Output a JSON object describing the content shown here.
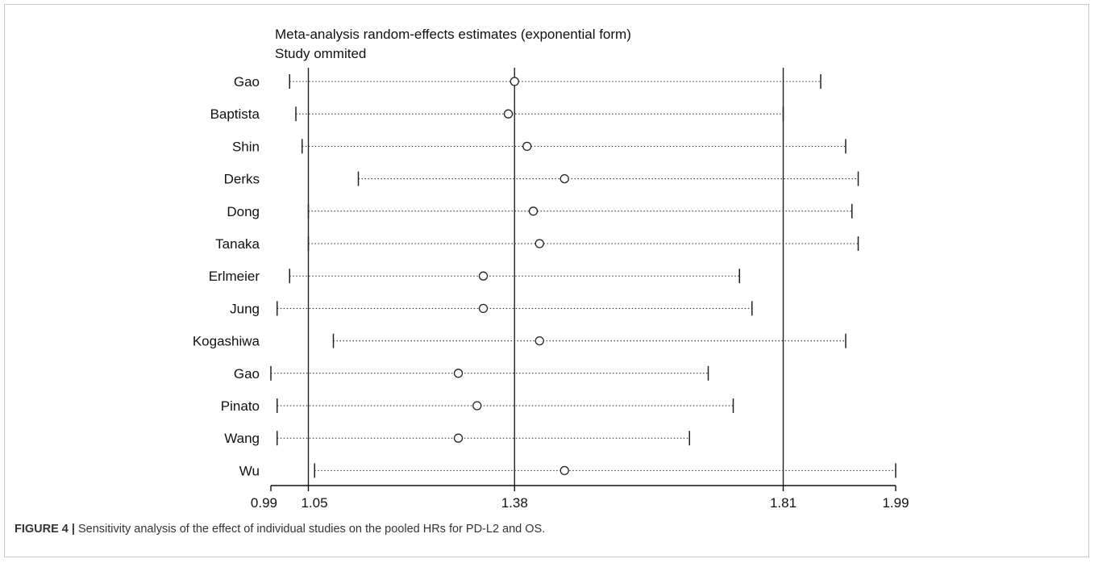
{
  "chart_data": {
    "type": "scatter",
    "title": "Meta-analysis random-effects estimates (exponential form)",
    "subtitle": "Study ommited",
    "xlabel": "",
    "ylabel": "",
    "xlim": [
      0.99,
      1.99
    ],
    "x_ticks": [
      "0.99",
      "1.05",
      "1.38",
      "1.81",
      "1.99"
    ],
    "reference_lines": [
      1.05,
      1.38,
      1.81
    ],
    "studies": [
      {
        "label": "Gao",
        "estimate": 1.38,
        "lower": 1.02,
        "upper": 1.87
      },
      {
        "label": "Baptista",
        "estimate": 1.37,
        "lower": 1.03,
        "upper": 1.81
      },
      {
        "label": "Shin",
        "estimate": 1.4,
        "lower": 1.04,
        "upper": 1.91
      },
      {
        "label": "Derks",
        "estimate": 1.46,
        "lower": 1.13,
        "upper": 1.93
      },
      {
        "label": "Dong",
        "estimate": 1.41,
        "lower": 1.05,
        "upper": 1.92
      },
      {
        "label": "Tanaka",
        "estimate": 1.42,
        "lower": 1.05,
        "upper": 1.93
      },
      {
        "label": "Erlmeier",
        "estimate": 1.33,
        "lower": 1.02,
        "upper": 1.74
      },
      {
        "label": "Jung",
        "estimate": 1.33,
        "lower": 1.0,
        "upper": 1.76
      },
      {
        "label": "Kogashiwa",
        "estimate": 1.42,
        "lower": 1.09,
        "upper": 1.91
      },
      {
        "label": "Gao",
        "estimate": 1.29,
        "lower": 0.99,
        "upper": 1.69
      },
      {
        "label": "Pinato",
        "estimate": 1.32,
        "lower": 1.0,
        "upper": 1.73
      },
      {
        "label": "Wang",
        "estimate": 1.29,
        "lower": 1.0,
        "upper": 1.66
      },
      {
        "label": "Wu",
        "estimate": 1.46,
        "lower": 1.06,
        "upper": 1.99
      }
    ],
    "grid": false,
    "legend": "none"
  },
  "caption": {
    "label": "FIGURE 4 |",
    "text": " Sensitivity analysis of the effect of individual studies on the pooled HRs for PD-L2 and OS."
  },
  "colors": {
    "axis": "#111111",
    "line": "#222222",
    "text": "#111111",
    "caption": "#333333",
    "frame": "#c8c8c8"
  }
}
